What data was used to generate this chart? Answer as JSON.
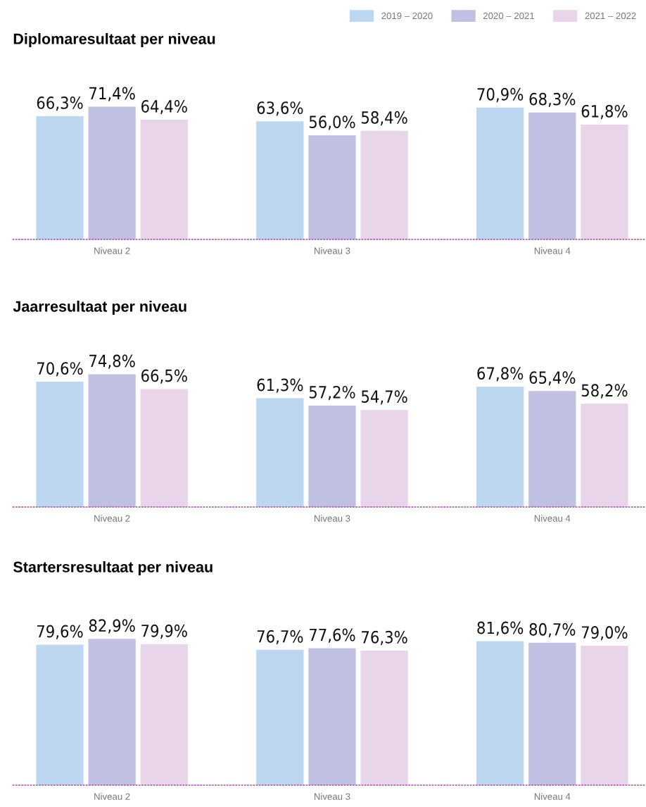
{
  "chart_data": [
    {
      "type": "bar",
      "title": "Diplomaresultaat per niveau",
      "categories": [
        "Niveau 2",
        "Niveau 3",
        "Niveau 4"
      ],
      "legend": "top right",
      "data_labels": true,
      "series": [
        {
          "name": "2019 – 2020",
          "color": "#bdd7f0",
          "values": [
            66.3,
            63.6,
            70.9
          ],
          "value_labels": [
            "66,3%",
            "63,6%",
            "70,9%"
          ]
        },
        {
          "name": "2020 – 2021",
          "color": "#c0c0e2",
          "values": [
            71.4,
            56.0,
            68.3
          ],
          "value_labels": [
            "71,4%",
            "56,0%",
            "68,3%"
          ]
        },
        {
          "name": "2021 – 2022",
          "color": "#e8d5e9",
          "values": [
            64.4,
            58.4,
            61.8
          ],
          "value_labels": [
            "64,4%",
            "58,4%",
            "61,8%"
          ]
        }
      ]
    },
    {
      "type": "bar",
      "title": "Jaarresultaat per niveau",
      "categories": [
        "Niveau 2",
        "Niveau 3",
        "Niveau 4"
      ],
      "data_labels": true,
      "series": [
        {
          "color": "#bdd7f0",
          "values": [
            70.6,
            61.3,
            67.8
          ],
          "value_labels": [
            "70,6%",
            "61,3%",
            "67,8%"
          ]
        },
        {
          "color": "#c0c0e2",
          "values": [
            74.8,
            57.2,
            65.4
          ],
          "value_labels": [
            "74,8%",
            "57,2%",
            "65,4%"
          ]
        },
        {
          "color": "#e8d5e9",
          "values": [
            66.5,
            54.7,
            58.2
          ],
          "value_labels": [
            "66,5%",
            "54,7%",
            "58,2%"
          ]
        }
      ]
    },
    {
      "type": "bar",
      "title": "Startersresultaat per niveau",
      "categories": [
        "Niveau 2",
        "Niveau 3",
        "Niveau 4"
      ],
      "data_labels": true,
      "series": [
        {
          "color": "#bdd7f0",
          "values": [
            79.6,
            76.7,
            81.6
          ],
          "value_labels": [
            "79,6%",
            "76,7%",
            "81,6%"
          ]
        },
        {
          "color": "#c0c0e2",
          "values": [
            82.9,
            77.6,
            80.7
          ],
          "value_labels": [
            "82,9%",
            "77,6%",
            "80,7%"
          ]
        },
        {
          "color": "#e8d5e9",
          "values": [
            79.9,
            76.3,
            79.0
          ],
          "value_labels": [
            "79,9%",
            "76,3%",
            "79,0%"
          ]
        }
      ]
    }
  ]
}
